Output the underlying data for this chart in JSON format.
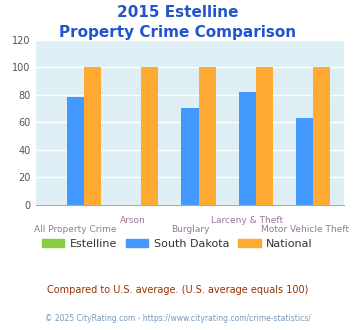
{
  "title_line1": "2015 Estelline",
  "title_line2": "Property Crime Comparison",
  "categories": [
    "All Property Crime",
    "Arson",
    "Burglary",
    "Larceny & Theft",
    "Motor Vehicle Theft"
  ],
  "estelline": [
    0,
    0,
    0,
    0,
    0
  ],
  "south_dakota": [
    78,
    0,
    70,
    82,
    63
  ],
  "national": [
    100,
    100,
    100,
    100,
    100
  ],
  "colors": {
    "estelline": "#88cc44",
    "south_dakota": "#4499ff",
    "national": "#ffaa33"
  },
  "ylim": [
    0,
    120
  ],
  "yticks": [
    0,
    20,
    40,
    60,
    80,
    100,
    120
  ],
  "background_color": "#deeef5",
  "title_color": "#2255cc",
  "xlabel_color": "#997799",
  "legend_label_color": "#333333",
  "legend_labels": [
    "Estelline",
    "South Dakota",
    "National"
  ],
  "footnote1": "Compared to U.S. average. (U.S. average equals 100)",
  "footnote2": "© 2025 CityRating.com - https://www.cityrating.com/crime-statistics/",
  "footnote1_color": "#993300",
  "footnote2_color": "#7799bb",
  "row1_labels": [
    1,
    3
  ],
  "row2_labels": [
    0,
    2,
    4
  ]
}
